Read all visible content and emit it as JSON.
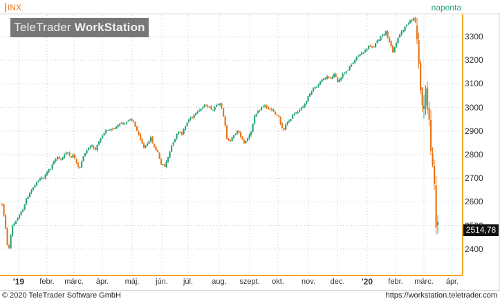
{
  "header": {
    "symbol": "INX",
    "interval": "naponta",
    "logo_light": "TeleTrader ",
    "logo_bold": "WorkStation"
  },
  "price_badge": "2514,78",
  "y_axis": {
    "labels": [
      "3300",
      "3200",
      "3100",
      "3000",
      "2900",
      "2800",
      "2700",
      "2600",
      "2500",
      "2400"
    ]
  },
  "x_axis": {
    "labels": [
      "'19",
      "febr.",
      "márc.",
      "ápr.",
      "máj.",
      "jún.",
      "júl.",
      "aug.",
      "szept.",
      "okt.",
      "nov.",
      "dec.",
      "'20",
      "febr.",
      "márc.",
      "ápr."
    ]
  },
  "footer": {
    "copyright": "© 2020 TeleTrader Software GmbH",
    "url": "https://workstation.teletrader.com"
  },
  "colors": {
    "up": "#2aa37b",
    "down": "#e8751a",
    "grid": "#c8c8c8",
    "axis_frame": "#f5a623",
    "badge": "#111111"
  },
  "chart_data": {
    "type": "candlestick",
    "symbol": "INX",
    "interval": "naponta",
    "last_value": 2514.78,
    "ylim": [
      2340,
      3400
    ],
    "y_ticks": [
      3300,
      3200,
      3100,
      3000,
      2900,
      2800,
      2700,
      2600,
      2500,
      2400
    ],
    "x_ticks": [
      "'19",
      "febr.",
      "márc.",
      "ápr.",
      "máj.",
      "jún.",
      "júl.",
      "aug.",
      "szept.",
      "okt.",
      "nov.",
      "dec.",
      "'20",
      "febr.",
      "márc.",
      "ápr."
    ],
    "close_path": [
      [
        0,
        2590
      ],
      [
        3,
        2530
      ],
      [
        6,
        2460
      ],
      [
        9,
        2380
      ],
      [
        12,
        2450
      ],
      [
        15,
        2500
      ],
      [
        20,
        2520
      ],
      [
        25,
        2540
      ],
      [
        30,
        2570
      ],
      [
        35,
        2610
      ],
      [
        40,
        2640
      ],
      [
        45,
        2660
      ],
      [
        50,
        2680
      ],
      [
        55,
        2700
      ],
      [
        60,
        2700
      ],
      [
        65,
        2730
      ],
      [
        70,
        2740
      ],
      [
        75,
        2770
      ],
      [
        80,
        2790
      ],
      [
        85,
        2780
      ],
      [
        90,
        2800
      ],
      [
        95,
        2810
      ],
      [
        100,
        2790
      ],
      [
        103,
        2800
      ],
      [
        108,
        2760
      ],
      [
        112,
        2740
      ],
      [
        116,
        2780
      ],
      [
        120,
        2810
      ],
      [
        125,
        2830
      ],
      [
        130,
        2840
      ],
      [
        134,
        2820
      ],
      [
        140,
        2850
      ],
      [
        145,
        2880
      ],
      [
        150,
        2900
      ],
      [
        155,
        2900
      ],
      [
        160,
        2910
      ],
      [
        165,
        2920
      ],
      [
        170,
        2935
      ],
      [
        175,
        2930
      ],
      [
        180,
        2940
      ],
      [
        185,
        2945
      ],
      [
        190,
        2940
      ],
      [
        195,
        2900
      ],
      [
        200,
        2860
      ],
      [
        205,
        2830
      ],
      [
        210,
        2850
      ],
      [
        215,
        2870
      ],
      [
        220,
        2830
      ],
      [
        225,
        2810
      ],
      [
        230,
        2760
      ],
      [
        235,
        2750
      ],
      [
        240,
        2790
      ],
      [
        245,
        2840
      ],
      [
        250,
        2870
      ],
      [
        255,
        2900
      ],
      [
        260,
        2890
      ],
      [
        265,
        2920
      ],
      [
        270,
        2950
      ],
      [
        275,
        2960
      ],
      [
        280,
        2980
      ],
      [
        285,
        2990
      ],
      [
        290,
        3000
      ],
      [
        295,
        3010
      ],
      [
        300,
        3000
      ],
      [
        305,
        2990
      ],
      [
        310,
        3015
      ],
      [
        315,
        3020
      ],
      [
        318,
        2990
      ],
      [
        322,
        2930
      ],
      [
        325,
        2870
      ],
      [
        330,
        2860
      ],
      [
        335,
        2880
      ],
      [
        340,
        2900
      ],
      [
        345,
        2880
      ],
      [
        350,
        2850
      ],
      [
        355,
        2870
      ],
      [
        360,
        2900
      ],
      [
        365,
        2960
      ],
      [
        370,
        2980
      ],
      [
        375,
        3000
      ],
      [
        380,
        3010
      ],
      [
        385,
        2990
      ],
      [
        390,
        2990
      ],
      [
        395,
        2970
      ],
      [
        400,
        2960
      ],
      [
        403,
        2920
      ],
      [
        407,
        2900
      ],
      [
        410,
        2930
      ],
      [
        415,
        2940
      ],
      [
        420,
        2970
      ],
      [
        425,
        2980
      ],
      [
        430,
        2990
      ],
      [
        435,
        3000
      ],
      [
        440,
        3030
      ],
      [
        445,
        3060
      ],
      [
        450,
        3080
      ],
      [
        455,
        3090
      ],
      [
        460,
        3110
      ],
      [
        465,
        3120
      ],
      [
        470,
        3130
      ],
      [
        475,
        3120
      ],
      [
        480,
        3140
      ],
      [
        485,
        3110
      ],
      [
        490,
        3130
      ],
      [
        495,
        3150
      ],
      [
        500,
        3160
      ],
      [
        505,
        3180
      ],
      [
        510,
        3200
      ],
      [
        515,
        3220
      ],
      [
        520,
        3230
      ],
      [
        525,
        3240
      ],
      [
        530,
        3260
      ],
      [
        535,
        3250
      ],
      [
        540,
        3270
      ],
      [
        545,
        3290
      ],
      [
        550,
        3310
      ],
      [
        555,
        3320
      ],
      [
        560,
        3280
      ],
      [
        565,
        3230
      ],
      [
        568,
        3260
      ],
      [
        572,
        3290
      ],
      [
        575,
        3310
      ],
      [
        580,
        3330
      ],
      [
        585,
        3350
      ],
      [
        590,
        3370
      ],
      [
        594,
        3380
      ],
      [
        597,
        3370
      ],
      [
        599,
        3340
      ],
      [
        601,
        3220
      ],
      [
        603,
        3140
      ],
      [
        605,
        3100
      ],
      [
        607,
        3030
      ],
      [
        609,
        2960
      ],
      [
        611,
        3050
      ],
      [
        613,
        3110
      ],
      [
        615,
        2990
      ],
      [
        617,
        2950
      ],
      [
        619,
        2880
      ],
      [
        621,
        2800
      ],
      [
        622,
        2720
      ],
      [
        623,
        2740
      ],
      [
        625,
        2660
      ],
      [
        627,
        2480
      ],
      [
        629,
        2520
      ],
      [
        631,
        2514.78
      ]
    ]
  }
}
